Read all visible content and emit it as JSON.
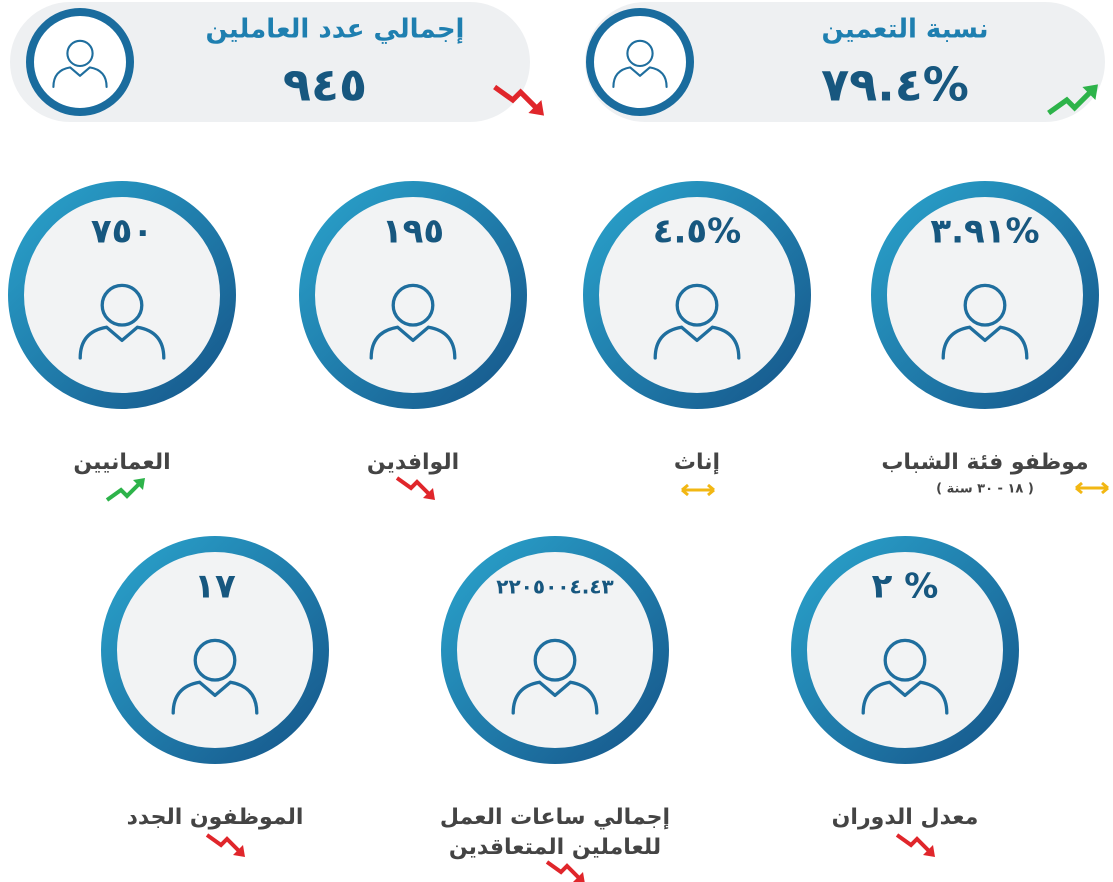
{
  "summary": [
    {
      "title": "نسبة التعمين",
      "value": "٧٩.٤%",
      "trend": "up"
    },
    {
      "title": "إجمالي عدد العاملين",
      "value": "٩٤٥",
      "trend": "down"
    }
  ],
  "indicators": [
    {
      "value": "٣.٩١%",
      "label": [
        "موظفو فئة الشباب"
      ],
      "note": "( ١٨ - ٣٠ سنة )",
      "trend": "flat"
    },
    {
      "value": "٤.٥%",
      "label": [
        "إناث"
      ],
      "trend": "flat"
    },
    {
      "value": "١٩٥",
      "label": [
        "الوافدين"
      ],
      "trend": "down"
    },
    {
      "value": "٧٥٠",
      "label": [
        "العمانيين"
      ],
      "trend": "up"
    },
    {
      "value": "٢ %",
      "label": [
        "معدل الدوران"
      ],
      "trend": "down"
    },
    {
      "value": "٢٢٠٥٠٠٤.٤٣",
      "label": [
        "إجمالي ساعات العمل",
        "للعاملين المتعاقدين"
      ],
      "trend": "down"
    },
    {
      "value": "١٧",
      "label": [
        "الموظفون الجدد"
      ],
      "trend": "down"
    }
  ]
}
